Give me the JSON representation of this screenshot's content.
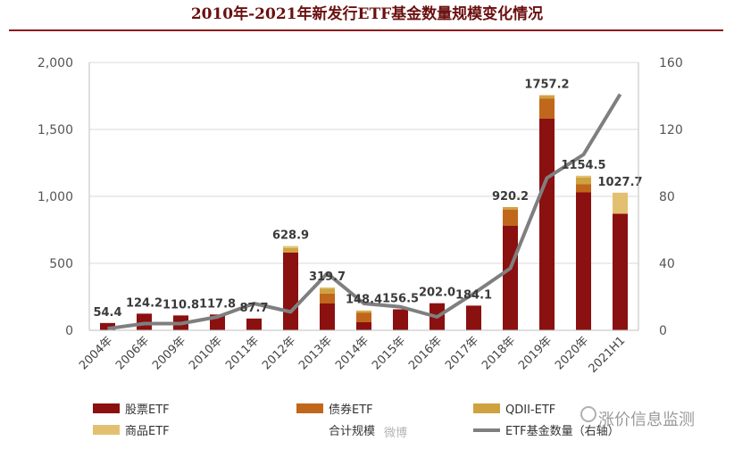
{
  "chart_data": {
    "type": "bar",
    "title": "2010年-2021年新发行ETF基金数量规模变化情况",
    "categories": [
      "2004年",
      "2006年",
      "2009年",
      "2010年",
      "2011年",
      "2012年",
      "2013年",
      "2014年",
      "2015年",
      "2016年",
      "2017年",
      "2018年",
      "2019年",
      "2020年",
      "2021H1"
    ],
    "series": [
      {
        "name": "股票ETF",
        "color": "#8b1010",
        "values": [
          54.4,
          124.2,
          110.8,
          117.8,
          87.7,
          580,
          200,
          60,
          156.5,
          202.0,
          184.1,
          780,
          1580,
          1030,
          870
        ]
      },
      {
        "name": "债券ETF",
        "color": "#c0671c",
        "values": [
          0,
          0,
          0,
          0,
          0,
          0,
          75,
          70,
          0,
          0,
          0,
          120,
          150,
          60,
          0
        ]
      },
      {
        "name": "QDII-ETF",
        "color": "#cfa240",
        "values": [
          0,
          0,
          0,
          0,
          0,
          35,
          35,
          13,
          0,
          0,
          0,
          20,
          25,
          50,
          0
        ]
      },
      {
        "name": "商品ETF",
        "color": "#e3c070",
        "values": [
          0,
          0,
          0,
          0,
          0,
          13.9,
          9.7,
          5.4,
          0,
          0,
          0,
          0.2,
          2.2,
          14.5,
          157.7
        ]
      }
    ],
    "totals_name": "合计规模",
    "totals": [
      54.4,
      124.2,
      110.8,
      117.8,
      87.7,
      628.9,
      319.7,
      148.4,
      156.5,
      202.0,
      184.1,
      920.2,
      1757.2,
      1154.5,
      1027.7
    ],
    "total_labels": [
      "54.4",
      "124.2",
      "110.8",
      "117.8",
      "87.7",
      "628.9",
      "319.7",
      "148.4",
      "156.5",
      "202.0",
      "184.1",
      "920.2",
      "1757.2",
      "1154.5",
      "1027.7"
    ],
    "line": {
      "name": "ETF基金数量（右轴）",
      "color": "#7f7f7f",
      "values": [
        1,
        4,
        4,
        8,
        16,
        11,
        34,
        16,
        14,
        8,
        22,
        37,
        91,
        105,
        141
      ]
    },
    "ylim": [
      0,
      2000
    ],
    "yticks": [
      0,
      500,
      1000,
      1500,
      2000
    ],
    "ytick_labels": [
      "0",
      "500",
      "1,000",
      "1,500",
      "2,000"
    ],
    "y2lim": [
      0,
      160
    ],
    "y2ticks": [
      0,
      40,
      80,
      120,
      160
    ],
    "y2tick_labels": [
      "0",
      "40",
      "80",
      "120",
      "160"
    ],
    "grid": true,
    "legend_position": "bottom"
  },
  "watermark": {
    "left": "微博",
    "right": "涨价信息监测"
  }
}
